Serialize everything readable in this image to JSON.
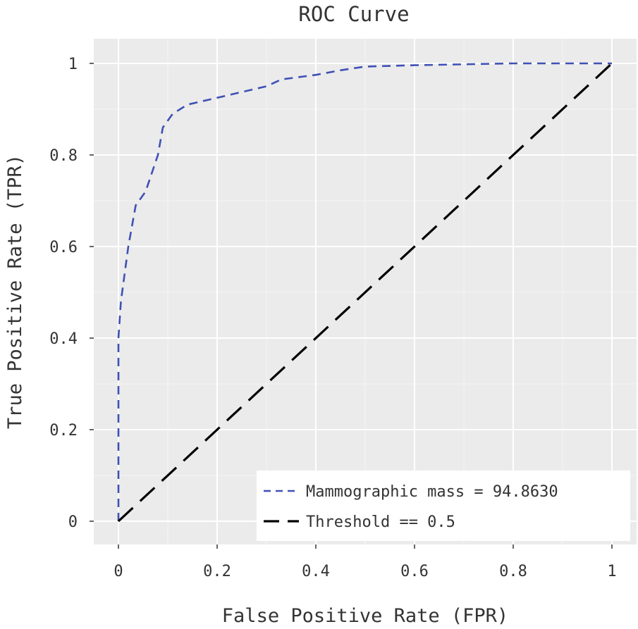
{
  "chart_data": {
    "type": "line",
    "title": "ROC Curve",
    "xlabel": "False Positive Rate (FPR)",
    "ylabel": "True Positive Rate (TPR)",
    "xlim": [
      0,
      1
    ],
    "ylim": [
      0,
      1
    ],
    "xticks": [
      {
        "value": 0,
        "label": "0"
      },
      {
        "value": 0.2,
        "label": "0.2"
      },
      {
        "value": 0.4,
        "label": "0.4"
      },
      {
        "value": 0.6,
        "label": "0.6"
      },
      {
        "value": 0.8,
        "label": "0.8"
      },
      {
        "value": 1,
        "label": "1"
      }
    ],
    "yticks": [
      {
        "value": 0,
        "label": "0"
      },
      {
        "value": 0.2,
        "label": "0.2"
      },
      {
        "value": 0.4,
        "label": "0.4"
      },
      {
        "value": 0.6,
        "label": "0.6"
      },
      {
        "value": 0.8,
        "label": "0.8"
      },
      {
        "value": 1,
        "label": "1"
      }
    ],
    "grid": true,
    "legend_position": "bottom-right",
    "series": [
      {
        "name": "Mammographic mass = 94.8630",
        "color": "#3f51b5",
        "style": "dashed",
        "x": [
          0,
          0.0,
          0.005,
          0.01,
          0.02,
          0.035,
          0.055,
          0.08,
          0.09,
          0.11,
          0.14,
          0.2,
          0.3,
          0.33,
          0.4,
          0.45,
          0.5,
          0.6,
          0.7,
          0.8,
          1.0
        ],
        "y": [
          0,
          0.4,
          0.48,
          0.52,
          0.6,
          0.69,
          0.72,
          0.8,
          0.86,
          0.89,
          0.91,
          0.925,
          0.95,
          0.965,
          0.975,
          0.985,
          0.993,
          0.996,
          0.998,
          1.0,
          1.0
        ]
      },
      {
        "name": "Threshold == 0.5",
        "color": "#000000",
        "style": "longdash",
        "x": [
          0,
          1
        ],
        "y": [
          0,
          1
        ]
      }
    ]
  }
}
